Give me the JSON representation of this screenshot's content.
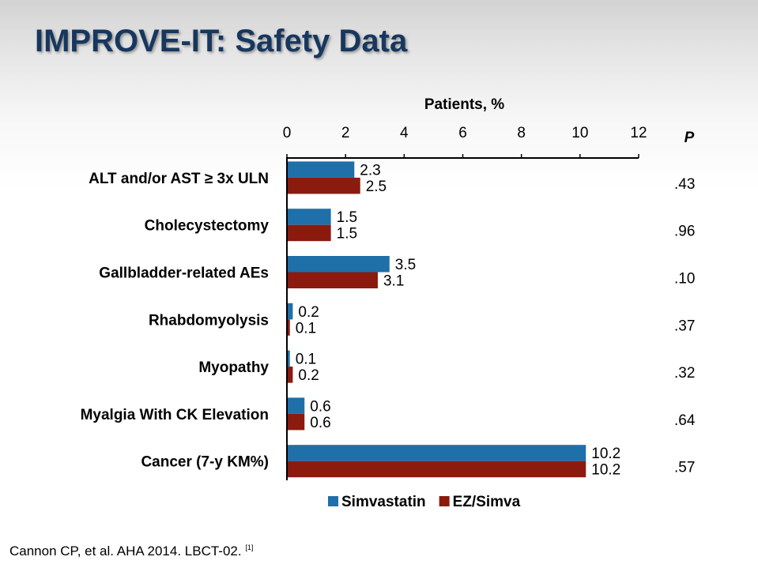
{
  "slide": {
    "title": "IMPROVE-IT: Safety Data",
    "footer": "Cannon CP, et al. AHA 2014. LBCT-02.",
    "footer_ref": "[1]"
  },
  "colors": {
    "title": "#17375e",
    "simvastatin": "#1f6fa9",
    "ez_simva": "#8b1a0f"
  },
  "chart_data": {
    "type": "bar",
    "orientation": "horizontal",
    "xlabel": "Patients, %",
    "xlim": [
      0,
      12
    ],
    "xticks": [
      "0",
      "2",
      "4",
      "6",
      "8",
      "10",
      "12"
    ],
    "p_header": "P",
    "categories": [
      "ALT and/or AST ≥ 3x ULN",
      "Cholecystectomy",
      "Gallbladder-related AEs",
      "Rhabdomyolysis",
      "Myopathy",
      "Myalgia With CK Elevation",
      "Cancer (7-y KM%)"
    ],
    "series": [
      {
        "name": "Simvastatin",
        "values": [
          2.3,
          1.5,
          3.5,
          0.2,
          0.1,
          0.6,
          10.2
        ],
        "labels": [
          "2.3",
          "1.5",
          "3.5",
          "0.2",
          "0.1",
          "0.6",
          "10.2"
        ]
      },
      {
        "name": "EZ/Simva",
        "values": [
          2.5,
          1.5,
          3.1,
          0.1,
          0.2,
          0.6,
          10.2
        ],
        "labels": [
          "2.5",
          "1.5",
          "3.1",
          "0.1",
          "0.2",
          "0.6",
          "10.2"
        ]
      }
    ],
    "p_values": [
      ".43",
      ".96",
      ".10",
      ".37",
      ".32",
      ".64",
      ".57"
    ],
    "legend": "bottom"
  }
}
